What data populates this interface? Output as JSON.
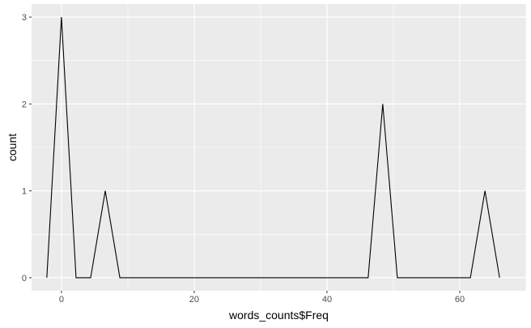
{
  "chart_data": {
    "type": "line",
    "title": "",
    "xlabel": "words_counts$Freq",
    "ylabel": "count",
    "xlim": [
      -4.5,
      70
    ],
    "ylim": [
      -0.15,
      3.15
    ],
    "x_ticks": [
      0,
      20,
      40,
      60
    ],
    "x_tick_labels": [
      "0",
      "20",
      "40",
      "60"
    ],
    "y_ticks": [
      0,
      1,
      2,
      3
    ],
    "y_tick_labels": [
      "0",
      "1",
      "2",
      "3"
    ],
    "grid": true,
    "legend": "none",
    "colors": {
      "panel": "#ebebeb",
      "grid": "#ffffff",
      "line": "#000000",
      "tick_text": "#4d4d4d"
    },
    "series": [
      {
        "x": [
          -2.2,
          0.0,
          2.2,
          4.4,
          6.6,
          8.8,
          46.2,
          48.4,
          50.6,
          61.6,
          63.8,
          66.0
        ],
        "values": [
          0,
          3,
          0,
          0,
          1,
          0,
          0,
          2,
          0,
          0,
          1,
          0
        ]
      }
    ]
  }
}
